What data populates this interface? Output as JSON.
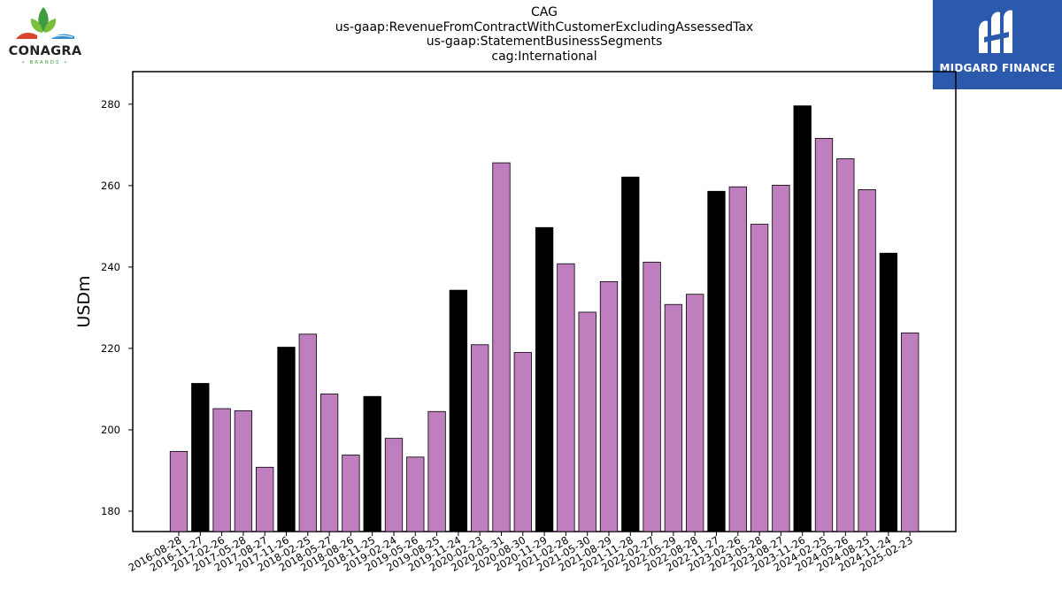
{
  "title_lines": [
    "CAG",
    "us-gaap:RevenueFromContractWithCustomerExcludingAssessedTax",
    "us-gaap:StatementBusinessSegments",
    "cag:International"
  ],
  "logos": {
    "left": {
      "name": "CONAGRA",
      "sub": "• BRANDS •"
    },
    "right": {
      "name": "MIDGARD FINANCE"
    }
  },
  "colors": {
    "regular": "#bf7fbf",
    "highlight": "#000000",
    "edge": "#000000",
    "logo_right_bg": "#2b5aad"
  },
  "chart_data": {
    "type": "bar",
    "title": "CAG\nus-gaap:RevenueFromContractWithCustomerExcludingAssessedTax\nus-gaap:StatementBusinessSegments\ncag:International",
    "xlabel": "",
    "ylabel": "USDm",
    "ylim": [
      175,
      288
    ],
    "yticks": [
      180,
      200,
      220,
      240,
      260,
      280
    ],
    "grid": false,
    "categories": [
      "2016-08-28",
      "2016-11-27",
      "2017-02-26",
      "2017-05-28",
      "2017-08-27",
      "2017-11-26",
      "2018-02-25",
      "2018-05-27",
      "2018-08-26",
      "2018-11-25",
      "2019-02-24",
      "2019-05-26",
      "2019-08-25",
      "2019-11-24",
      "2020-02-23",
      "2020-05-31",
      "2020-08-30",
      "2020-11-29",
      "2021-02-28",
      "2021-05-30",
      "2021-08-29",
      "2021-11-28",
      "2022-02-27",
      "2022-05-29",
      "2022-08-28",
      "2022-11-27",
      "2023-02-26",
      "2023-05-28",
      "2023-08-27",
      "2023-11-26",
      "2024-02-25",
      "2024-05-26",
      "2024-08-25",
      "2024-11-24",
      "2025-02-23"
    ],
    "values": [
      194.7,
      211.4,
      205.2,
      204.7,
      190.8,
      220.3,
      223.5,
      208.8,
      193.8,
      208.2,
      197.9,
      193.3,
      204.5,
      234.3,
      220.9,
      265.6,
      219.0,
      249.7,
      240.8,
      228.9,
      236.4,
      262.1,
      241.2,
      230.8,
      233.3,
      258.6,
      259.7,
      250.5,
      260.1,
      279.6,
      271.6,
      266.6,
      259.0,
      243.4,
      223.8
    ],
    "highlight": [
      false,
      true,
      false,
      false,
      false,
      true,
      false,
      false,
      false,
      true,
      false,
      false,
      false,
      true,
      false,
      false,
      false,
      true,
      false,
      false,
      false,
      true,
      false,
      false,
      false,
      true,
      false,
      false,
      false,
      true,
      false,
      false,
      false,
      true,
      false
    ]
  }
}
